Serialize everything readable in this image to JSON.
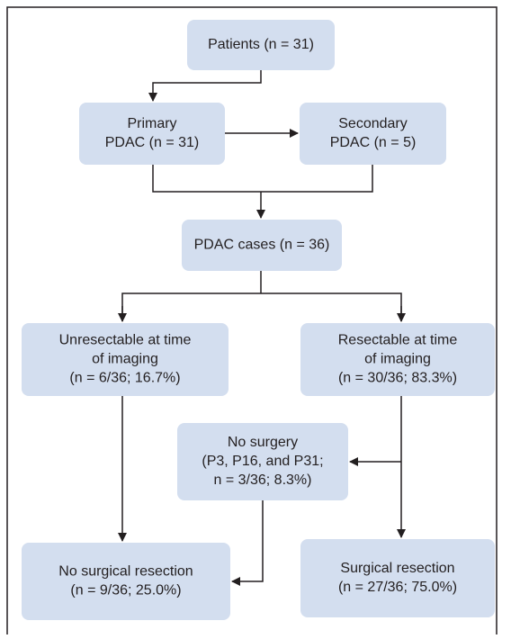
{
  "nodes": [
    {
      "lines": [
        "Patients (n = 31)"
      ]
    },
    {
      "lines": [
        "Primary",
        "PDAC (n = 31)"
      ]
    },
    {
      "lines": [
        "Secondary",
        "PDAC (n = 5)"
      ]
    },
    {
      "lines": [
        "PDAC cases (n = 36)"
      ]
    },
    {
      "lines": [
        "Unresectable at time",
        "of imaging",
        "(n = 6/36; 16.7%)"
      ]
    },
    {
      "lines": [
        "Resectable at time",
        "of imaging",
        "(n = 30/36; 83.3%)"
      ]
    },
    {
      "lines": [
        "No surgery",
        "(P3, P16, and P31;",
        "n = 3/36; 8.3%)"
      ]
    },
    {
      "lines": [
        "No surgical resection",
        "(n = 9/36; 25.0%)"
      ]
    },
    {
      "lines": [
        "Surgical resection",
        "(n = 27/36; 75.0%)"
      ]
    }
  ]
}
